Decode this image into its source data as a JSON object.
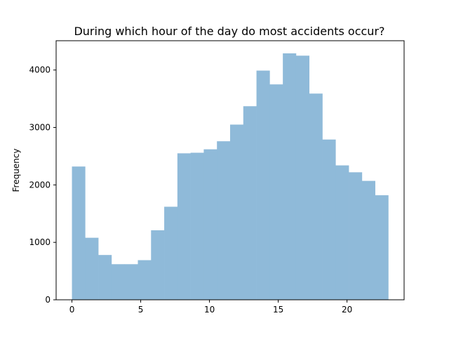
{
  "chart_data": {
    "type": "bar",
    "subtype": "histogram",
    "title": "During which hour of the day do most accidents occur?",
    "xlabel": "",
    "ylabel": "Frequency",
    "bin_edges": [
      0,
      0.9583,
      1.9167,
      2.875,
      3.8333,
      4.7917,
      5.75,
      6.7083,
      7.6667,
      8.625,
      9.5833,
      10.5417,
      11.5,
      12.4583,
      13.4167,
      14.375,
      15.3333,
      16.2917,
      17.25,
      18.2083,
      19.1667,
      20.125,
      21.0833,
      22.0417,
      23
    ],
    "values": [
      2320,
      1080,
      780,
      620,
      620,
      690,
      1210,
      1620,
      2550,
      2560,
      2620,
      2760,
      3050,
      3370,
      3990,
      3750,
      4290,
      4250,
      3590,
      2790,
      2340,
      2220,
      2070,
      1820
    ],
    "xlim": [
      -1.15,
      24.15
    ],
    "ylim": [
      0,
      4510
    ],
    "xticks": [
      0,
      5,
      10,
      15,
      20
    ],
    "xtick_labels": [
      "0",
      "5",
      "10",
      "15",
      "20"
    ],
    "yticks": [
      0,
      1000,
      2000,
      3000,
      4000
    ],
    "ytick_labels": [
      "0",
      "1000",
      "2000",
      "3000",
      "4000"
    ],
    "bar_color": "#8fbad9",
    "grid": false,
    "legend": "none"
  }
}
